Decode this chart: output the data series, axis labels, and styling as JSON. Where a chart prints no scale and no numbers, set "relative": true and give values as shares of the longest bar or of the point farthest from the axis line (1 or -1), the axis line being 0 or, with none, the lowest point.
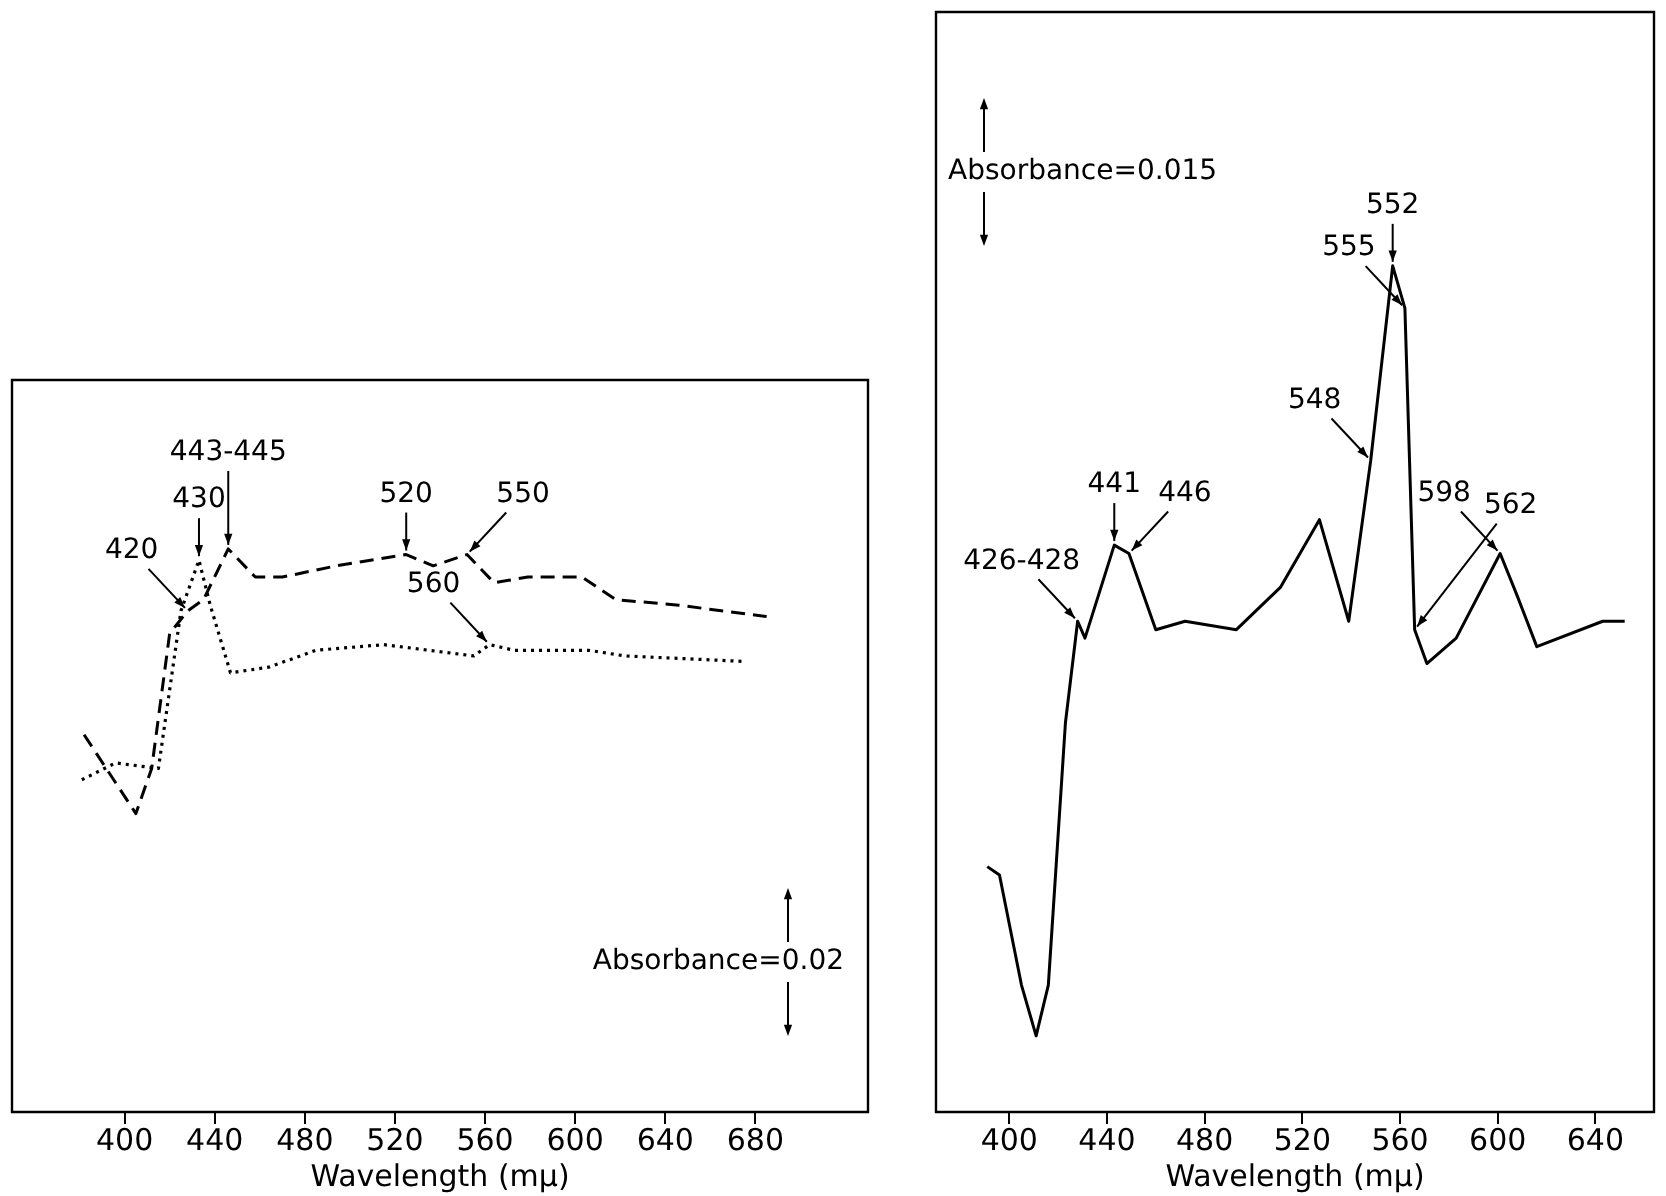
{
  "chart_data": [
    {
      "type": "line",
      "relative": true,
      "xlabel": "Wavelength (mμ)",
      "xlim": [
        350,
        730
      ],
      "xticks": [
        400,
        440,
        480,
        520,
        560,
        600,
        640,
        680
      ],
      "grid": false,
      "legend": false,
      "marker": "none",
      "series": [
        {
          "color": "#000000",
          "line_style": "dashed",
          "x": [
            382,
            405,
            412,
            420,
            428,
            435,
            446,
            458,
            470,
            494,
            525,
            537,
            552,
            564,
            579,
            603,
            618,
            646,
            685
          ],
          "values": [
            0.67,
            0.53,
            0.61,
            0.85,
            0.89,
            0.91,
            1.0,
            0.95,
            0.95,
            0.97,
            0.99,
            0.97,
            0.99,
            0.94,
            0.95,
            0.95,
            0.91,
            0.9,
            0.88
          ]
        },
        {
          "color": "#000000",
          "line_style": "dotted",
          "x": [
            381,
            396,
            415,
            425,
            433,
            438,
            447,
            464,
            485,
            515,
            555,
            562,
            573,
            606,
            622,
            676
          ],
          "values": [
            0.59,
            0.62,
            0.61,
            0.89,
            0.98,
            0.9,
            0.78,
            0.79,
            0.82,
            0.83,
            0.81,
            0.83,
            0.82,
            0.82,
            0.81,
            0.8
          ]
        }
      ],
      "annotations": [
        {
          "text": "420",
          "x": 428,
          "y": 0.89
        },
        {
          "text": "430",
          "x": 433,
          "y": 0.98
        },
        {
          "text": "443-445",
          "x": 446,
          "y": 1.0
        },
        {
          "text": "520",
          "x": 525,
          "y": 0.99
        },
        {
          "text": "550",
          "x": 552,
          "y": 0.99
        },
        {
          "text": "560",
          "x": 562,
          "y": 0.83
        },
        "Absorbance=0.02"
      ]
    },
    {
      "type": "line",
      "relative": true,
      "xlabel": "Wavelength (mμ)",
      "xlim": [
        370,
        664
      ],
      "xticks": [
        400,
        440,
        480,
        520,
        560,
        600,
        640
      ],
      "grid": false,
      "legend": false,
      "marker": "none",
      "series": [
        {
          "color": "#000000",
          "line_style": "solid",
          "x": [
            391,
            396,
            405,
            411,
            416,
            423,
            428,
            431,
            443,
            449,
            460,
            472,
            493,
            511,
            527,
            539,
            548,
            557,
            562,
            566,
            571,
            583,
            601,
            608,
            616,
            643,
            652
          ],
          "values": [
            0.29,
            0.28,
            0.15,
            0.09,
            0.15,
            0.46,
            0.58,
            0.56,
            0.67,
            0.66,
            0.57,
            0.58,
            0.57,
            0.62,
            0.7,
            0.58,
            0.77,
            1.0,
            0.95,
            0.57,
            0.53,
            0.56,
            0.66,
            0.61,
            0.55,
            0.58,
            0.58
          ]
        }
      ],
      "annotations": [
        {
          "text": "426-428",
          "x": 428,
          "y": 0.58
        },
        {
          "text": "441",
          "x": 443,
          "y": 0.67
        },
        {
          "text": "446",
          "x": 449,
          "y": 0.66
        },
        {
          "text": "548",
          "x": 548,
          "y": 0.77
        },
        {
          "text": "552",
          "x": 557,
          "y": 1.0
        },
        {
          "text": "555",
          "x": 562,
          "y": 0.95
        },
        {
          "text": "562",
          "x": 566,
          "y": 0.57
        },
        {
          "text": "598",
          "x": 601,
          "y": 0.66
        },
        "Absorbance=0.015"
      ]
    }
  ]
}
